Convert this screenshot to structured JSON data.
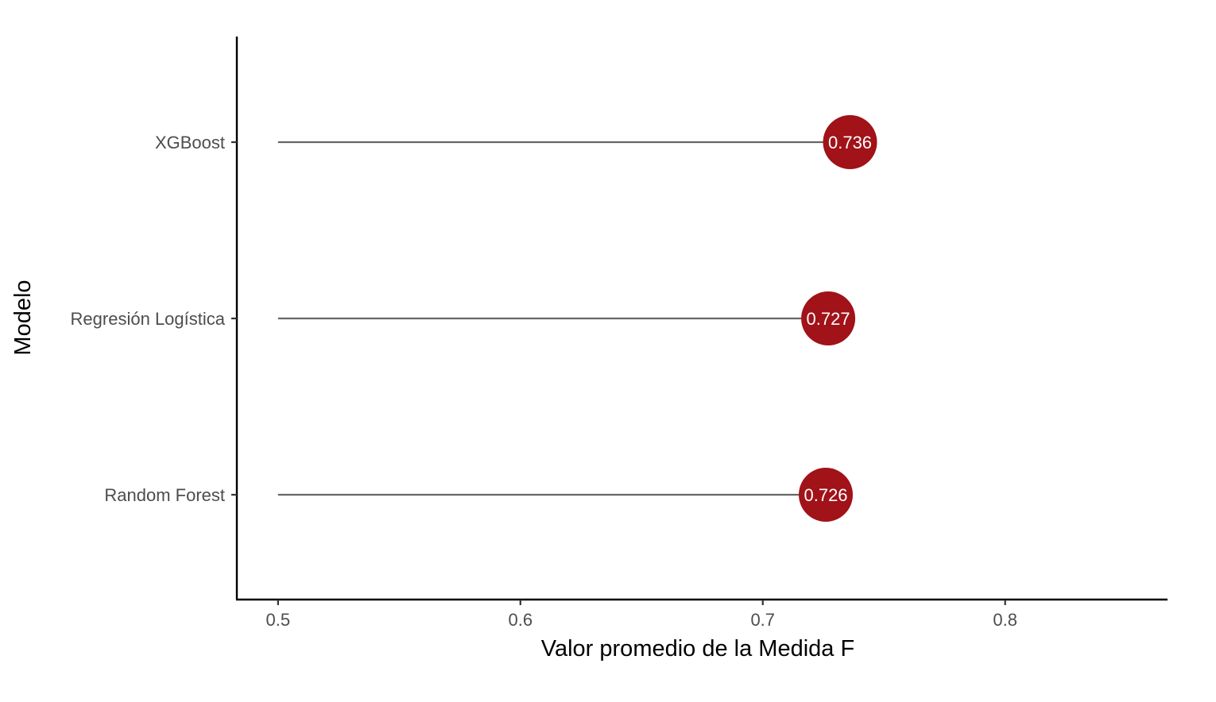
{
  "chart_data": {
    "type": "lollipop",
    "xlabel": "Valor promedio de la Medida F",
    "ylabel": "Modelo",
    "xlim": [
      0.483,
      0.867
    ],
    "x_ticks": [
      0.5,
      0.6,
      0.7,
      0.8
    ],
    "x_tick_labels": [
      "0.5",
      "0.6",
      "0.7",
      "0.8"
    ],
    "baseline": 0.5,
    "categories": [
      "XGBoost",
      "Regresión Logística",
      "Random Forest"
    ],
    "values": [
      0.736,
      0.727,
      0.726
    ],
    "value_labels": [
      "0.736",
      "0.727",
      "0.726"
    ],
    "grid": false,
    "legend": "none",
    "colors": {
      "point": "#a11219",
      "stem": "#666666",
      "axis": "#000000"
    }
  }
}
